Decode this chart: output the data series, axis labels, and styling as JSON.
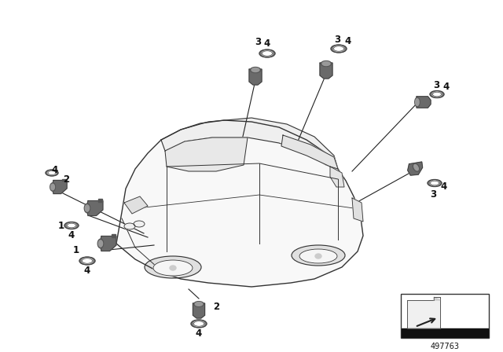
{
  "bg_color": "#ffffff",
  "part_number": "497763",
  "car_color": "#f8f8f8",
  "car_edge": "#333333",
  "sensor_color": "#6a6a6a",
  "sensor_dark": "#555555",
  "sensor_face": "#888888",
  "ring_color": "#777777",
  "line_color": "#222222",
  "label_color": "#111111",
  "fig_width": 6.4,
  "fig_height": 4.48,
  "dpi": 100
}
